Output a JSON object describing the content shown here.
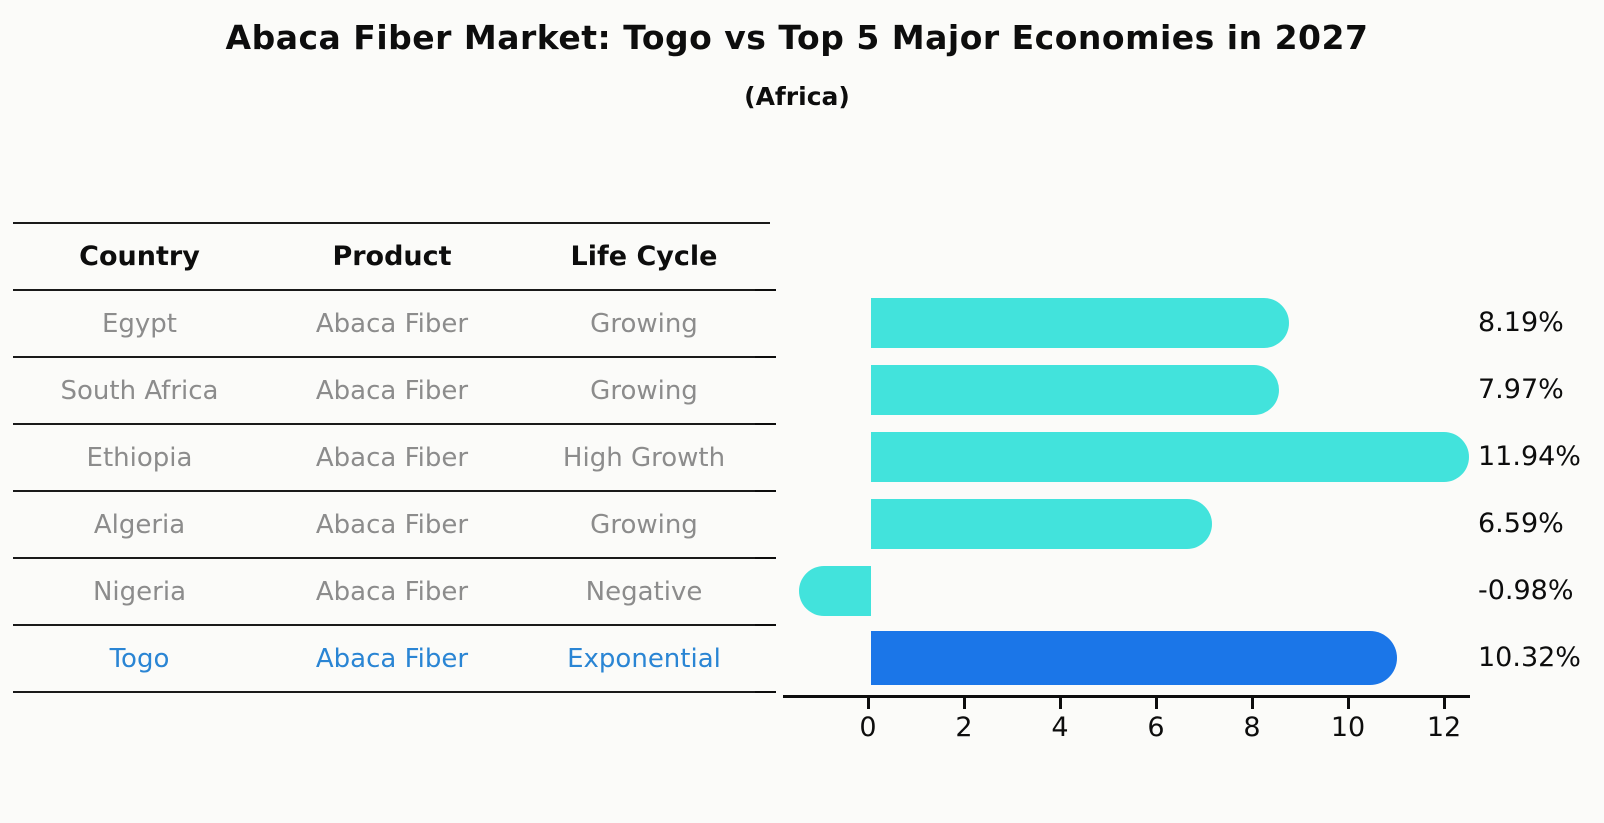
{
  "header": {
    "title": "Abaca Fiber Market: Togo vs Top 5 Major Economies in 2027",
    "subtitle": "(Africa)"
  },
  "table": {
    "columns": [
      "Country",
      "Product",
      "Life Cycle"
    ],
    "rows": [
      {
        "country": "Egypt",
        "product": "Abaca Fiber",
        "life_cycle": "Growing",
        "highlight": false
      },
      {
        "country": "South Africa",
        "product": "Abaca Fiber",
        "life_cycle": "Growing",
        "highlight": false
      },
      {
        "country": "Ethiopia",
        "product": "Abaca Fiber",
        "life_cycle": "High Growth",
        "highlight": false
      },
      {
        "country": "Algeria",
        "product": "Abaca Fiber",
        "life_cycle": "Growing",
        "highlight": false
      },
      {
        "country": "Nigeria",
        "product": "Abaca Fiber",
        "life_cycle": "Negative",
        "highlight": false
      },
      {
        "country": "Togo",
        "product": "Abaca Fiber",
        "life_cycle": "Exponential",
        "highlight": true
      }
    ]
  },
  "chart_data": {
    "type": "bar",
    "orientation": "horizontal",
    "title": "Abaca Fiber Market: Togo vs Top 5 Major Economies in 2027",
    "subtitle": "(Africa)",
    "categories": [
      "Egypt",
      "South Africa",
      "Ethiopia",
      "Algeria",
      "Nigeria",
      "Togo"
    ],
    "values": [
      8.19,
      7.97,
      11.94,
      6.59,
      -0.98,
      10.32
    ],
    "value_labels": [
      "8.19%",
      "7.97%",
      "11.94%",
      "6.59%",
      "-0.98%",
      "10.32%"
    ],
    "highlight_index": 5,
    "x_ticks": [
      0,
      2,
      4,
      6,
      8,
      10,
      12
    ],
    "xlim": [
      -1.7,
      13.0
    ],
    "xlabel": "",
    "ylabel": "",
    "grid": false,
    "legend": false,
    "colors": {
      "bar": "#42e3dc",
      "highlight_bar": "#1b76e8",
      "highlight_text": "#2a85d4",
      "row_text": "#8c8c8c",
      "header_text": "#0d0d0d",
      "axis": "#0d0d0d"
    }
  }
}
